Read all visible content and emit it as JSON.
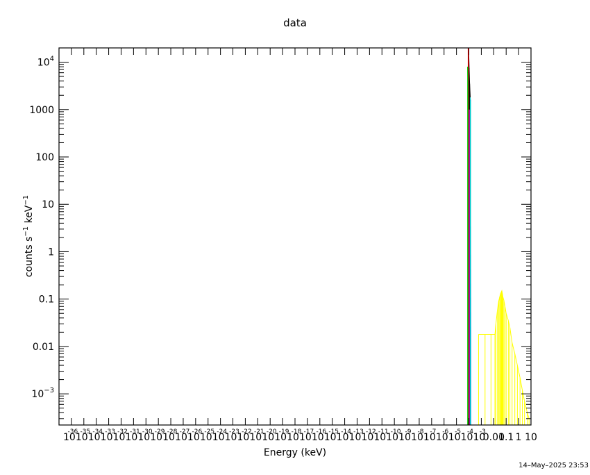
{
  "chart_data": {
    "type": "line",
    "title": "data",
    "xlabel": "Energy (keV)",
    "ylabel": "counts s",
    "ylabel_sup1": "−1",
    "ylabel_mid": " keV",
    "ylabel_sup2": "−1",
    "x_scale": "log",
    "y_scale": "log",
    "xlim": [
      1e-37,
      10
    ],
    "ylim": [
      0.00022,
      20000
    ],
    "grid": false,
    "x_tick_exponents": [
      -36,
      -35,
      -34,
      -33,
      -32,
      -31,
      -30,
      -29,
      -28,
      -27,
      -26,
      -25,
      -24,
      -23,
      -22,
      -21,
      -20,
      -19,
      -18,
      -17,
      -16,
      -15,
      -14,
      -13,
      -12,
      -11,
      -10,
      -9,
      -8,
      -7,
      -6,
      -5,
      -4,
      -3
    ],
    "x_tick_base_label": "10",
    "x_tick_extra_labels": [
      {
        "value": 0.01,
        "label": "0.01"
      },
      {
        "value": 0.1,
        "label": "0.1"
      },
      {
        "value": 1,
        "label": "1"
      },
      {
        "value": 10,
        "label": "10"
      }
    ],
    "y_ticks": [
      {
        "value": 10000,
        "label": "10",
        "sup": "4"
      },
      {
        "value": 1000,
        "label": "1000",
        "sup": ""
      },
      {
        "value": 100,
        "label": "100",
        "sup": ""
      },
      {
        "value": 10,
        "label": "10",
        "sup": ""
      },
      {
        "value": 1,
        "label": "1",
        "sup": ""
      },
      {
        "value": 0.1,
        "label": "0.1",
        "sup": ""
      },
      {
        "value": 0.01,
        "label": "0.01",
        "sup": ""
      },
      {
        "value": 0.001,
        "label": "10",
        "sup": "−3"
      }
    ],
    "series": [
      {
        "color": "#000000",
        "points": [
          [
            9.5e-05,
            20000
          ],
          [
            0.000105,
            7500
          ],
          [
            0.000115,
            3500
          ],
          [
            0.00013,
            1700
          ]
        ]
      },
      {
        "color": "#ff0000",
        "points": [
          [
            8.68e-05,
            20000
          ],
          [
            9.15e-05,
            10000
          ]
        ]
      },
      {
        "color": "#00cc00",
        "points": [
          [
            7.85e-05,
            8000
          ],
          [
            8.35e-05,
            4000
          ]
        ]
      },
      {
        "color": "#0000ff",
        "points": [
          [
            0.000133,
            1600
          ],
          [
            0.000142,
            0.02
          ]
        ]
      },
      {
        "color": "#00cccc",
        "points": [
          [
            0.000128,
            1800
          ],
          [
            0.000138,
            1400
          ]
        ]
      },
      {
        "color": "#ff00ff",
        "points": [
          [
            0.000108,
            1000
          ]
        ]
      },
      {
        "color": "#ffff00",
        "points": [
          [
            0.0006,
            0.018
          ],
          [
            0.002,
            0.018
          ],
          [
            0.006,
            0.018
          ],
          [
            0.0125,
            0.018
          ],
          [
            0.015,
            0.03
          ],
          [
            0.02,
            0.06
          ],
          [
            0.025,
            0.09
          ],
          [
            0.03,
            0.11
          ],
          [
            0.035,
            0.13
          ],
          [
            0.04,
            0.14
          ],
          [
            0.045,
            0.15
          ],
          [
            0.05,
            0.13
          ],
          [
            0.055,
            0.11
          ],
          [
            0.065,
            0.095
          ],
          [
            0.08,
            0.07
          ],
          [
            0.1,
            0.05
          ],
          [
            0.15,
            0.035
          ],
          [
            0.2,
            0.025
          ],
          [
            0.3,
            0.012
          ],
          [
            0.5,
            0.007
          ],
          [
            0.8,
            0.004
          ],
          [
            1.3,
            0.0022
          ],
          [
            2,
            0.0012
          ],
          [
            3,
            0.0007
          ],
          [
            5,
            0.0004
          ],
          [
            7,
            0.0003
          ]
        ]
      }
    ]
  },
  "footer": {
    "timestamp": "14–May–2025 23:53"
  }
}
